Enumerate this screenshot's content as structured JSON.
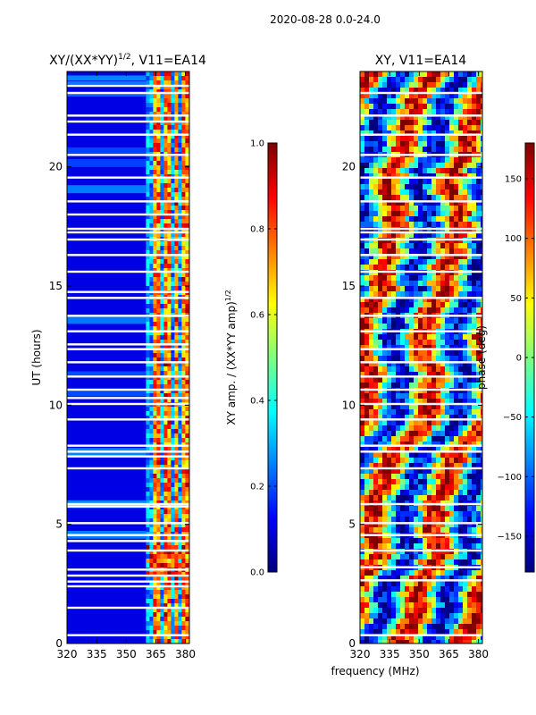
{
  "suptitle": "2020-08-28 0.0-24.0",
  "colormap": [
    "#00007f",
    "#0000ff",
    "#007fff",
    "#00ffff",
    "#7fff7f",
    "#ffff00",
    "#ff7f00",
    "#ff0000",
    "#7f0000"
  ],
  "shared": {
    "xlabel": "frequency (MHz)",
    "ylabel": "UT (hours)",
    "x_ticks": [
      320,
      335,
      350,
      365,
      380
    ],
    "y_ticks": [
      0,
      5,
      10,
      15,
      20
    ],
    "xlim": [
      320,
      382
    ],
    "ylim": [
      0,
      24
    ]
  },
  "chart_data": [
    {
      "type": "heatmap",
      "title_main": "XY/(XX*YY)",
      "title_sup": "1/2",
      "title_rest": ", V11=EA14",
      "colorbar": {
        "label_main": "XY amp. / (XX*YY amp)",
        "label_sup": "1/2",
        "range": [
          0.0,
          1.0
        ],
        "ticks": [
          "0.0",
          "0.2",
          "0.4",
          "0.6",
          "0.8",
          "1.0"
        ]
      },
      "bright_channels_mhz": [
        364.5,
        369.5,
        374.5,
        379.5
      ],
      "bright_band_mhz": [
        360,
        382
      ],
      "hot_time_range_h": [
        3.0,
        4.2
      ],
      "gap_times_h": [
        0.35,
        1.5,
        2.4,
        2.6,
        2.85,
        3.1,
        3.9,
        4.3,
        4.55,
        5.05,
        5.75,
        5.85,
        7.35,
        7.85,
        8.05,
        8.3,
        9.4,
        10.05,
        10.3,
        10.65,
        11.2,
        11.8,
        12.35,
        12.55,
        13.1,
        13.75,
        14.5,
        14.75,
        15.6,
        16.3,
        16.95,
        17.25,
        17.4,
        18.0,
        18.55,
        19.55,
        20.5,
        21.35,
        21.9,
        22.15,
        23.1,
        23.4
      ]
    },
    {
      "type": "heatmap",
      "title": "XY, V11=EA14",
      "colorbar": {
        "label": "phase (deg)",
        "range": [
          -180,
          180
        ],
        "ticks": [
          "−150",
          "−100",
          "−50",
          "0",
          "50",
          "100",
          "150"
        ]
      },
      "gap_times_h": [
        0.35,
        2.65,
        3.2,
        3.9,
        4.55,
        5.05,
        5.85,
        7.35,
        8.05,
        8.3,
        9.4,
        10.05,
        10.65,
        11.2,
        11.8,
        12.35,
        13.1,
        13.75,
        14.5,
        15.6,
        16.3,
        16.95,
        17.25,
        17.4,
        18.55,
        19.55,
        20.5,
        21.35,
        22.15,
        23.1
      ]
    }
  ]
}
